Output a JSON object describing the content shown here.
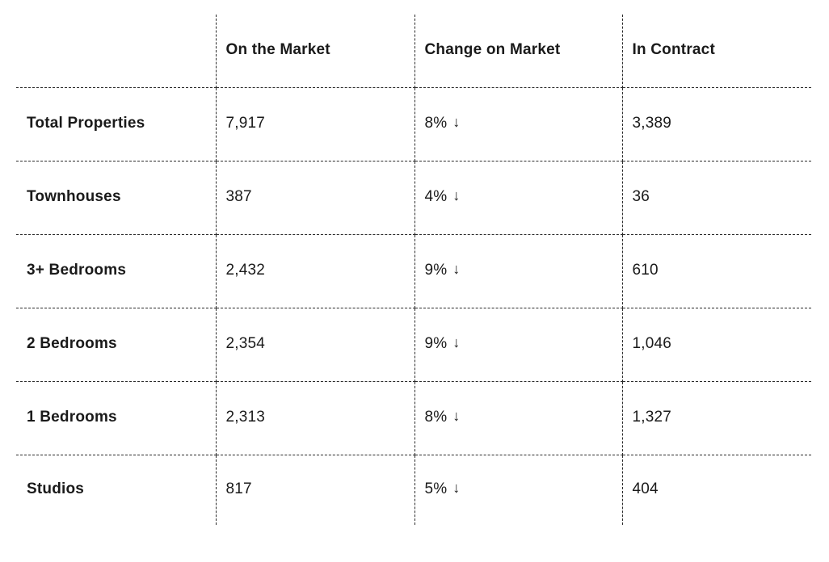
{
  "page": {
    "background_color": "#ffffff",
    "text_color": "#1a1a1a",
    "grid_line_color": "#2b2b2b",
    "grid_line_style": "dashed"
  },
  "icons": {
    "down_arrow": "↓"
  },
  "chart_data": {
    "type": "table",
    "title": "",
    "columns": [
      "On the Market",
      "Change on Market",
      "In Contract"
    ],
    "rows": [
      {
        "label": "Total Properties",
        "on_the_market": "7,917",
        "change_on_market": "8%",
        "change_direction": "down",
        "in_contract": "3,389"
      },
      {
        "label": "Townhouses",
        "on_the_market": "387",
        "change_on_market": "4%",
        "change_direction": "down",
        "in_contract": "36"
      },
      {
        "label": "3+ Bedrooms",
        "on_the_market": "2,432",
        "change_on_market": "9%",
        "change_direction": "down",
        "in_contract": "610"
      },
      {
        "label": "2 Bedrooms",
        "on_the_market": "2,354",
        "change_on_market": "9%",
        "change_direction": "down",
        "in_contract": "1,046"
      },
      {
        "label": "1 Bedrooms",
        "on_the_market": "2,313",
        "change_on_market": "8%",
        "change_direction": "down",
        "in_contract": "1,327"
      },
      {
        "label": "Studios",
        "on_the_market": "817",
        "change_on_market": "5%",
        "change_direction": "down",
        "in_contract": "404"
      }
    ]
  }
}
